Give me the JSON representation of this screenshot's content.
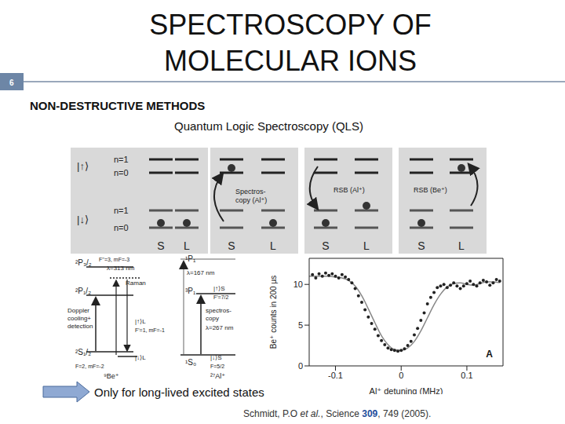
{
  "slide": {
    "number": 6,
    "title": [
      "SPECTROSCOPY OF",
      "MOLECULAR IONS"
    ],
    "heading": "NON-DESTRUCTIVE METHODS",
    "subheading": "Quantum Logic Spectroscopy (QLS)",
    "panels": {
      "state_labels": [
        "|↑⟩",
        "|↓⟩"
      ],
      "motion_labels": [
        "n=1",
        "n=0"
      ],
      "columns": [
        "S",
        "L"
      ],
      "steps": [
        [
          "Spectros-",
          "copy (Al⁺)"
        ],
        [
          "RSB (Al⁺)"
        ],
        [
          "RSB (Be⁺)"
        ]
      ]
    },
    "level_diagram": [
      "²P₃/₂",
      "F''=3, mF=-3",
      "λ=313 nm",
      "Raman",
      "²P₁/₂",
      "Doppler",
      "cooling+",
      "detection",
      "|↑⟩L",
      "F'=1, mF=-1",
      "²S₁/₂",
      "|↓⟩L",
      "F=2, mF=-2",
      "⁹Be⁺",
      "¹P₁",
      "λ=167 nm",
      "³P₁",
      "|↑⟩S",
      "F'=7/2",
      "spectros-",
      "copy",
      "λ=267 nm",
      "¹S₀",
      "|↓⟩S",
      "F=5/2",
      "²⁷Al⁺"
    ],
    "note": "Only for long-lived excited states",
    "citation": [
      "Schmidt, P.O",
      "et al.",
      ", Science",
      "309",
      ", 749 (2005)."
    ]
  },
  "chart_data": {
    "type": "scatter",
    "x_label": "Al⁺ detuning (MHz)",
    "y_label": "Be⁺ counts in 200 µs",
    "panel_label": "A",
    "xlim": [
      -0.14,
      0.155
    ],
    "xticks": [
      -0.1,
      0,
      0.1
    ],
    "ylim": [
      0,
      13.2
    ],
    "yticks": [
      0,
      5,
      10
    ],
    "series": [
      {
        "type": "scatter",
        "color": "#222222",
        "marker": "circle",
        "x": [
          -0.135,
          -0.13,
          -0.125,
          -0.12,
          -0.115,
          -0.11,
          -0.105,
          -0.1,
          -0.095,
          -0.09,
          -0.085,
          -0.08,
          -0.075,
          -0.07,
          -0.065,
          -0.06,
          -0.055,
          -0.05,
          -0.045,
          -0.04,
          -0.035,
          -0.03,
          -0.025,
          -0.02,
          -0.015,
          -0.01,
          -0.005,
          0,
          0.005,
          0.01,
          0.015,
          0.02,
          0.025,
          0.03,
          0.035,
          0.04,
          0.045,
          0.05,
          0.055,
          0.06,
          0.065,
          0.07,
          0.075,
          0.08,
          0.085,
          0.09,
          0.095,
          0.1,
          0.105,
          0.11,
          0.115,
          0.12,
          0.125,
          0.13,
          0.135,
          0.14,
          0.145,
          0.15
        ],
        "values": [
          11.2,
          10.8,
          11.3,
          11.0,
          11.4,
          11.1,
          11.3,
          11.0,
          10.8,
          11.2,
          10.9,
          10.6,
          10.2,
          9.5,
          8.6,
          7.8,
          6.9,
          6.0,
          5.2,
          4.5,
          3.7,
          3.1,
          2.6,
          2.2,
          2.0,
          1.9,
          1.8,
          1.9,
          2.1,
          2.5,
          3.0,
          3.8,
          4.6,
          5.6,
          6.5,
          7.6,
          8.4,
          9.0,
          9.6,
          9.8,
          10.0,
          9.6,
          9.9,
          10.2,
          9.8,
          9.5,
          9.8,
          10.1,
          10.4,
          10.0,
          9.8,
          10.2,
          10.5,
          10.3,
          9.9,
          10.2,
          10.6,
          10.4
        ]
      },
      {
        "type": "line",
        "color": "#888888",
        "x": [
          -0.14,
          -0.13,
          -0.12,
          -0.11,
          -0.1,
          -0.09,
          -0.08,
          -0.07,
          -0.06,
          -0.05,
          -0.04,
          -0.03,
          -0.02,
          -0.01,
          0,
          0.01,
          0.02,
          0.03,
          0.04,
          0.05,
          0.06,
          0.07,
          0.08,
          0.09,
          0.1,
          0.11,
          0.12,
          0.13,
          0.14,
          0.15
        ],
        "values": [
          11.0,
          11.0,
          11.0,
          11.0,
          10.9,
          10.8,
          10.5,
          9.8,
          8.6,
          7.0,
          5.3,
          3.7,
          2.6,
          2.0,
          1.9,
          2.2,
          3.0,
          4.3,
          5.9,
          7.5,
          8.8,
          9.7,
          10.1,
          10.2,
          10.0,
          9.9,
          10.1,
          10.3,
          10.3,
          10.2
        ]
      }
    ]
  }
}
